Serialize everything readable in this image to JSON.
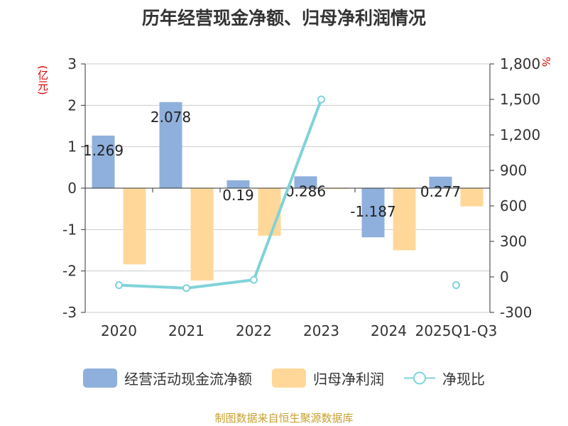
{
  "chart_data": {
    "type": "bar",
    "title": "历年经营现金净额、归母净利润情况",
    "categories": [
      "2020",
      "2021",
      "2022",
      "2023",
      "2024",
      "2025Q1-Q3"
    ],
    "left_unit": "(亿元)",
    "right_unit": "%",
    "left_axis": {
      "ylim": [
        -3,
        3
      ],
      "ticks": [
        "3",
        "2",
        "1",
        "0",
        "-1",
        "-2",
        "-3"
      ]
    },
    "right_axis": {
      "ylim": [
        -300,
        1800
      ],
      "ticks": [
        "1,800",
        "1,500",
        "1,200",
        "900",
        "600",
        "300",
        "0",
        "-300"
      ]
    },
    "grid": true,
    "legend_position": "bottom",
    "series": [
      {
        "name": "经营活动现金流净额",
        "kind": "bar",
        "axis": "left",
        "color": "#8fb0dc",
        "values": [
          1.269,
          2.078,
          0.19,
          0.286,
          -1.187,
          0.277
        ],
        "labels": [
          "1.269",
          "2.078",
          "0.19",
          "0.286",
          "-1.187",
          "0.277"
        ]
      },
      {
        "name": "归母净利润",
        "kind": "bar",
        "axis": "left",
        "color": "#ffd899",
        "values": [
          -1.84,
          -2.23,
          -1.15,
          -0.02,
          -1.5,
          -0.44
        ]
      },
      {
        "name": "净现比",
        "kind": "line",
        "axis": "right",
        "color": "#7fd3d9",
        "values": [
          -70,
          -95,
          -25,
          1500,
          null,
          -70
        ]
      }
    ]
  },
  "footer": "制图数据来自恒生聚源数据库"
}
